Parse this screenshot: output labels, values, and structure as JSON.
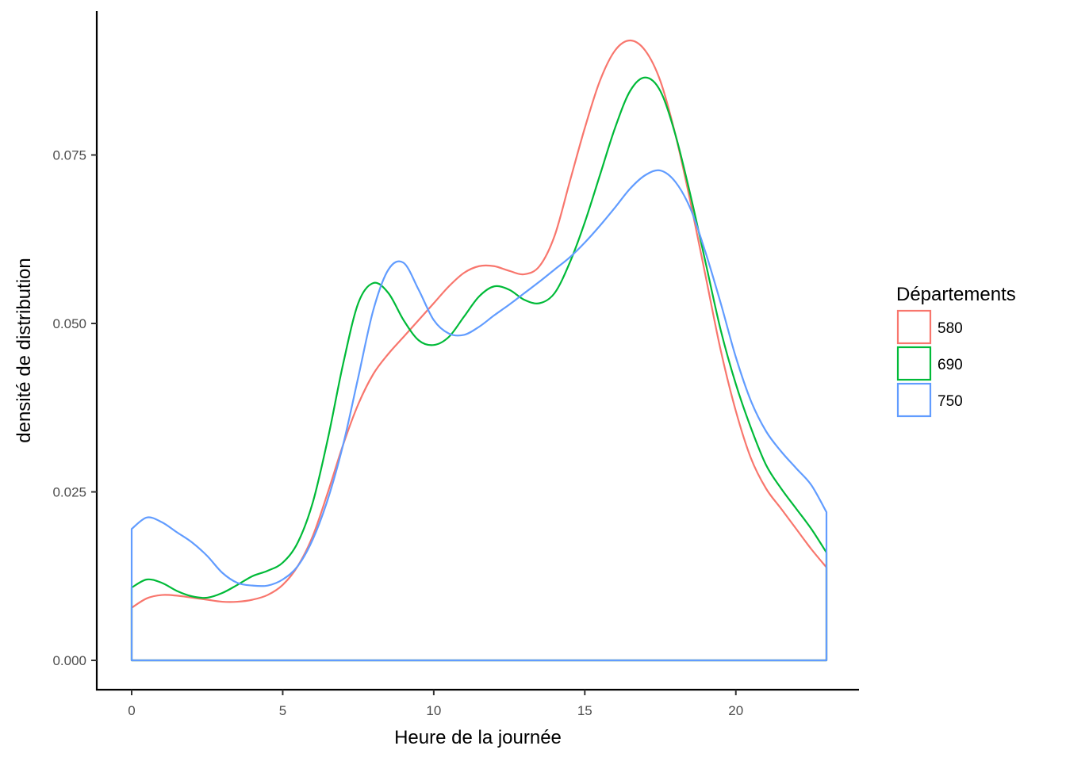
{
  "chart_data": {
    "type": "line",
    "subtype": "density",
    "title": "",
    "xlabel": "Heure de la journée",
    "ylabel": "densité de distribution",
    "xlim": [
      0,
      23
    ],
    "ylim": [
      0,
      0.0925
    ],
    "x_ticks": [
      0,
      5,
      10,
      15,
      20
    ],
    "x_tick_labels": [
      "0",
      "5",
      "10",
      "15",
      "20"
    ],
    "y_ticks": [
      0,
      0.025,
      0.05,
      0.075
    ],
    "y_tick_labels": [
      "0.000",
      "0.025",
      "0.050",
      "0.075"
    ],
    "grid": false,
    "legend": {
      "title": "Départements",
      "position": "right"
    },
    "series": [
      {
        "name": "580",
        "color": "#F8766D",
        "x": [
          0,
          0.5,
          1,
          1.5,
          2,
          2.5,
          3,
          3.5,
          4,
          4.5,
          5,
          5.5,
          6,
          6.5,
          7,
          7.5,
          8,
          8.5,
          9,
          9.5,
          10,
          10.5,
          11,
          11.5,
          12,
          12.5,
          13,
          13.5,
          14,
          14.5,
          15,
          15.5,
          16,
          16.5,
          17,
          17.5,
          18,
          18.5,
          19,
          19.5,
          20,
          20.5,
          21,
          21.5,
          22,
          22.5,
          23
        ],
        "y": [
          0.0078,
          0.0092,
          0.0097,
          0.0096,
          0.0093,
          0.009,
          0.0087,
          0.0087,
          0.009,
          0.0097,
          0.0112,
          0.014,
          0.0185,
          0.025,
          0.032,
          0.038,
          0.0425,
          0.0455,
          0.048,
          0.0505,
          0.053,
          0.0555,
          0.0575,
          0.0585,
          0.0585,
          0.0578,
          0.0573,
          0.0585,
          0.063,
          0.071,
          0.079,
          0.086,
          0.0905,
          0.092,
          0.0905,
          0.086,
          0.078,
          0.068,
          0.057,
          0.046,
          0.037,
          0.03,
          0.0255,
          0.0225,
          0.0195,
          0.0165,
          0.0138
        ]
      },
      {
        "name": "690",
        "color": "#00BA38",
        "x": [
          0,
          0.5,
          1,
          1.5,
          2,
          2.5,
          3,
          3.5,
          4,
          4.5,
          5,
          5.5,
          6,
          6.5,
          7,
          7.5,
          8,
          8.5,
          9,
          9.5,
          10,
          10.5,
          11,
          11.5,
          12,
          12.5,
          13,
          13.5,
          14,
          14.5,
          15,
          15.5,
          16,
          16.5,
          17,
          17.5,
          18,
          18.5,
          19,
          19.5,
          20,
          20.5,
          21,
          21.5,
          22,
          22.5,
          23
        ],
        "y": [
          0.0108,
          0.012,
          0.0115,
          0.0103,
          0.0095,
          0.0093,
          0.01,
          0.0112,
          0.0125,
          0.0133,
          0.0145,
          0.0175,
          0.0235,
          0.033,
          0.044,
          0.053,
          0.056,
          0.0545,
          0.0505,
          0.0475,
          0.0468,
          0.048,
          0.051,
          0.054,
          0.0555,
          0.055,
          0.0535,
          0.053,
          0.0545,
          0.059,
          0.065,
          0.072,
          0.079,
          0.0845,
          0.0865,
          0.0845,
          0.078,
          0.069,
          0.059,
          0.049,
          0.041,
          0.0345,
          0.029,
          0.0255,
          0.0225,
          0.0195,
          0.016
        ]
      },
      {
        "name": "750",
        "color": "#619CFF",
        "x": [
          0,
          0.5,
          1,
          1.5,
          2,
          2.5,
          3,
          3.5,
          4,
          4.5,
          5,
          5.5,
          6,
          6.5,
          7,
          7.5,
          8,
          8.5,
          9,
          9.5,
          10,
          10.5,
          11,
          11.5,
          12,
          12.5,
          13,
          13.5,
          14,
          14.5,
          15,
          15.5,
          16,
          16.5,
          17,
          17.5,
          18,
          18.5,
          19,
          19.5,
          20,
          20.5,
          21,
          21.5,
          22,
          22.5,
          23
        ],
        "y": [
          0.0195,
          0.0212,
          0.0205,
          0.019,
          0.0175,
          0.0155,
          0.013,
          0.0115,
          0.0111,
          0.0111,
          0.012,
          0.014,
          0.018,
          0.024,
          0.032,
          0.042,
          0.052,
          0.058,
          0.059,
          0.055,
          0.0505,
          0.0485,
          0.0483,
          0.0495,
          0.0512,
          0.0528,
          0.0545,
          0.0562,
          0.058,
          0.0598,
          0.062,
          0.0645,
          0.0672,
          0.07,
          0.072,
          0.0727,
          0.071,
          0.067,
          0.0605,
          0.053,
          0.045,
          0.0385,
          0.034,
          0.031,
          0.0285,
          0.026,
          0.022
        ]
      }
    ]
  }
}
